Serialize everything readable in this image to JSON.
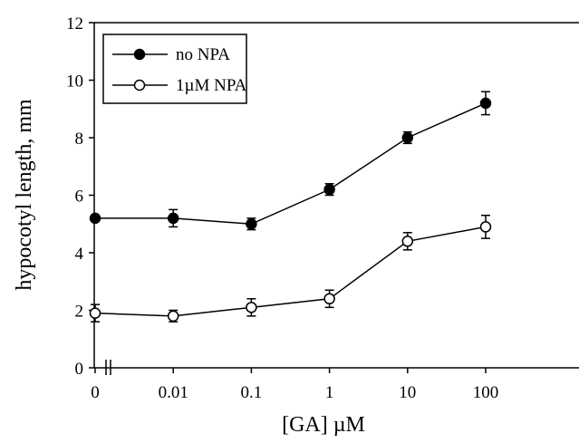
{
  "chart_data": {
    "type": "line",
    "title": "",
    "xlabel": "[GA] µM",
    "ylabel": "hypocotyl length, mm",
    "categories": [
      "0",
      "0.01",
      "0.1",
      "1",
      "10",
      "100"
    ],
    "ylim": [
      0,
      12
    ],
    "yticks": [
      "0",
      "2",
      "4",
      "6",
      "8",
      "10",
      "12"
    ],
    "grid": false,
    "legend_position": "top-left",
    "axis_break": "x-axis after 0",
    "series": [
      {
        "name": "no NPA",
        "marker": "filled-circle",
        "values": [
          5.2,
          5.2,
          5.0,
          6.2,
          8.0,
          9.2
        ],
        "errors": [
          0.0,
          0.3,
          0.2,
          0.2,
          0.2,
          0.4
        ]
      },
      {
        "name": "1µM NPA",
        "marker": "open-circle",
        "values": [
          1.9,
          1.8,
          2.1,
          2.4,
          4.4,
          4.9
        ],
        "errors": [
          0.3,
          0.2,
          0.3,
          0.3,
          0.3,
          0.4
        ]
      }
    ],
    "colors": {
      "ink": "#000000",
      "background": "#ffffff"
    }
  }
}
